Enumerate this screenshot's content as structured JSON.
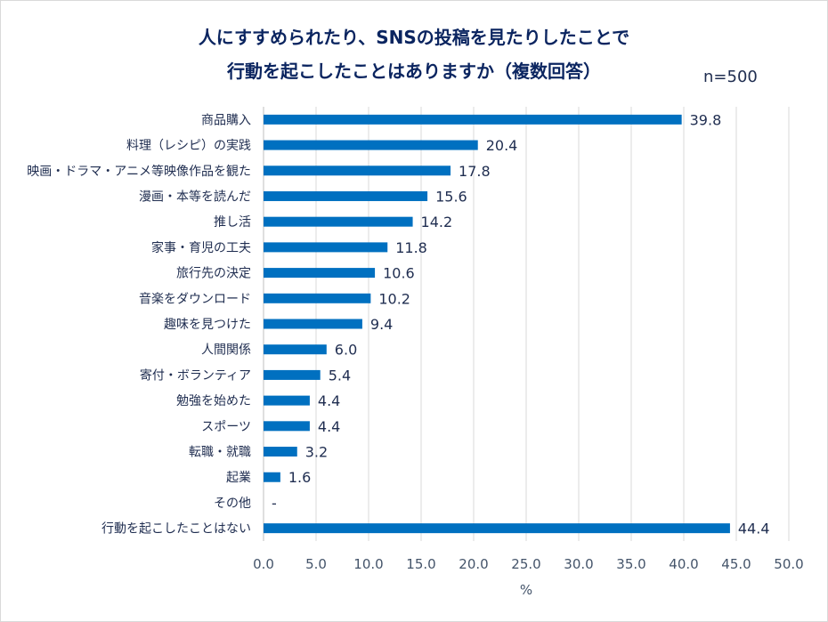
{
  "chart_data": {
    "type": "bar",
    "orientation": "horizontal",
    "title": [
      "人にすすめられたり、SNSの投稿を見たりしたことで",
      "行動を起こしたことはありますか（複数回答）"
    ],
    "note": "n=500",
    "xlabel": "%",
    "ylabel": "",
    "xlim": [
      0,
      50
    ],
    "xticks": [
      "0.0",
      "5.0",
      "10.0",
      "15.0",
      "20.0",
      "25.0",
      "30.0",
      "35.0",
      "40.0",
      "45.0",
      "50.0"
    ],
    "grid": "vertical",
    "categories": [
      "商品購入",
      "料理（レシピ）の実践",
      "映画・ドラマ・アニメ等映像作品を観た",
      "漫画・本等を読んだ",
      "推し活",
      "家事・育児の工夫",
      "旅行先の決定",
      "音楽をダウンロード",
      "趣味を見つけた",
      "人間関係",
      "寄付・ボランティア",
      "勉強を始めた",
      "スポーツ",
      "転職・就職",
      "起業",
      "その他",
      "行動を起こしたことはない"
    ],
    "values": [
      39.8,
      20.4,
      17.8,
      15.6,
      14.2,
      11.8,
      10.6,
      10.2,
      9.4,
      6.0,
      5.4,
      4.4,
      4.4,
      3.2,
      1.6,
      null,
      44.4
    ],
    "value_labels": [
      "39.8",
      "20.4",
      "17.8",
      "15.6",
      "14.2",
      "11.8",
      "10.6",
      "10.2",
      "9.4",
      "6.0",
      "5.4",
      "4.4",
      "4.4",
      "3.2",
      "1.6",
      "-",
      "44.4"
    ],
    "bar_color": "#0070c0"
  }
}
